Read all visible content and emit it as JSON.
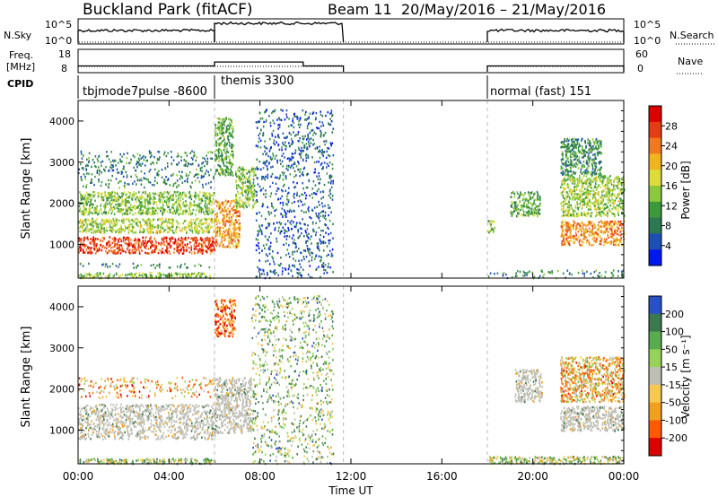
{
  "header": {
    "station": "Buckland Park (fitACF)",
    "beam_label": "Beam 11",
    "date_range": "20/May/2016 – 21/May/2016"
  },
  "nsky_panel": {
    "left_label": "N.Sky",
    "right_label": "N.Search",
    "left_ticks": [
      "10^5",
      "10^0"
    ],
    "right_ticks": [
      "10^5",
      "10^0"
    ]
  },
  "freq_panel": {
    "left_label_line1": "Freq.",
    "left_label_line2": "[MHz]",
    "right_label": "Nave",
    "left_ticks": [
      "18",
      "8"
    ],
    "right_ticks": [
      "60",
      "0"
    ]
  },
  "cpid": {
    "label": "CPID",
    "segments": [
      {
        "name": "tbjmode7pulse -8600",
        "start_hour": 0.0,
        "end_hour": 6.0
      },
      {
        "name": "themis 3300",
        "start_hour": 6.0,
        "end_hour": 11.67
      },
      {
        "name": "normal (fast) 151",
        "start_hour": 18.0,
        "end_hour": 24.0
      }
    ]
  },
  "x_axis": {
    "title": "Time UT",
    "ticks": [
      "00:00",
      "04:00",
      "08:00",
      "12:00",
      "16:00",
      "20:00",
      "00:00"
    ]
  },
  "colors": {
    "power": [
      "#0018f0",
      "#1e50b4",
      "#2d7850",
      "#3c9a3c",
      "#8cc83c",
      "#dcdc3c",
      "#f0b41e",
      "#f0781e",
      "#e63c14",
      "#dc0000"
    ],
    "velocity_neg": [
      "#dc0000",
      "#ff5a00",
      "#f0a01e",
      "#f5c850"
    ],
    "velocity_pos": [
      "#2850c8",
      "#3c7850",
      "#5aaa50",
      "#96d25a"
    ],
    "ground_scatter": "#bebeb4"
  },
  "power_colorbar": {
    "title": "Power [dB]",
    "ticks": [
      "28",
      "24",
      "20",
      "16",
      "12",
      "8",
      "4"
    ]
  },
  "velocity_colorbar": {
    "title": "Velocity [m s⁻¹]",
    "ticks": [
      "200",
      "100",
      "50",
      "15",
      "-15",
      "-50",
      "-100",
      "-200"
    ]
  },
  "chart_data": [
    {
      "type": "line",
      "panel": "N.Sky / N.Search",
      "x_unit": "hour UT",
      "x_range": [
        0,
        24
      ],
      "segments": [
        {
          "start_hour": 0.0,
          "end_hour": 6.0,
          "level": "mid"
        },
        {
          "start_hour": 6.0,
          "end_hour": 11.67,
          "level": "high"
        },
        {
          "start_hour": 18.0,
          "end_hour": 24.0,
          "level": "mid"
        }
      ]
    },
    {
      "type": "line",
      "panel": "Freq. [MHz] / Nave",
      "x_unit": "hour UT",
      "ylim": [
        8,
        18
      ],
      "freq_segments": [
        {
          "start_hour": 0.0,
          "end_hour": 6.0,
          "value": 10.5
        },
        {
          "start_hour": 6.0,
          "end_hour": 9.9,
          "value": 12.5
        },
        {
          "start_hour": 9.9,
          "end_hour": 11.67,
          "value": 10.5
        },
        {
          "start_hour": 18.0,
          "end_hour": 24.0,
          "value": 10.5
        }
      ]
    },
    {
      "type": "heatmap",
      "panel": "Power",
      "ylabel": "Slant Range [km]",
      "xlabel": "Time UT",
      "xlim": [
        0,
        24
      ],
      "ylim": [
        180,
        4500
      ],
      "y_ticks": [
        1000,
        2000,
        3000,
        4000
      ],
      "colorbar_range_db": [
        0,
        32
      ],
      "regions": [
        {
          "t": [
            0.0,
            6.0
          ],
          "r": [
            200,
            330
          ],
          "value": 14
        },
        {
          "t": [
            0.0,
            6.0
          ],
          "r": [
            450,
            560
          ],
          "value": 10
        },
        {
          "t": [
            0.0,
            6.0
          ],
          "r": [
            800,
            1200
          ],
          "value": 27
        },
        {
          "t": [
            0.0,
            6.0
          ],
          "r": [
            1300,
            1650
          ],
          "value": 16
        },
        {
          "t": [
            0.0,
            6.0
          ],
          "r": [
            1750,
            2300
          ],
          "value": 14
        },
        {
          "t": [
            0.0,
            6.0
          ],
          "r": [
            2400,
            3300
          ],
          "value": 9
        },
        {
          "t": [
            6.0,
            7.1
          ],
          "r": [
            950,
            2100
          ],
          "value": 22
        },
        {
          "t": [
            6.0,
            6.8
          ],
          "r": [
            2700,
            4100
          ],
          "value": 12
        },
        {
          "t": [
            6.9,
            7.8
          ],
          "r": [
            1900,
            2900
          ],
          "value": 14
        },
        {
          "t": [
            7.8,
            11.2
          ],
          "r": [
            200,
            4300
          ],
          "value": 6
        },
        {
          "t": [
            18.0,
            24.0
          ],
          "r": [
            200,
            400
          ],
          "value": 9
        },
        {
          "t": [
            18.0,
            18.3
          ],
          "r": [
            1300,
            1600
          ],
          "value": 14
        },
        {
          "t": [
            19.0,
            20.3
          ],
          "r": [
            1700,
            2300
          ],
          "value": 12
        },
        {
          "t": [
            21.2,
            24.0
          ],
          "r": [
            1000,
            1600
          ],
          "value": 23
        },
        {
          "t": [
            21.2,
            24.0
          ],
          "r": [
            1700,
            2700
          ],
          "value": 15
        },
        {
          "t": [
            21.2,
            23.0
          ],
          "r": [
            2700,
            3600
          ],
          "value": 10
        }
      ]
    },
    {
      "type": "heatmap",
      "panel": "Velocity",
      "ylabel": "Slant Range [km]",
      "xlabel": "Time UT",
      "xlim": [
        0,
        24
      ],
      "ylim": [
        180,
        4500
      ],
      "y_ticks": [
        1000,
        2000,
        3000,
        4000
      ],
      "colorbar_range_ms": [
        -250,
        250
      ],
      "regions": [
        {
          "t": [
            0.0,
            6.0
          ],
          "r": [
            800,
            1650
          ],
          "value": 0,
          "ground_scatter": true
        },
        {
          "t": [
            0.0,
            6.0
          ],
          "r": [
            1800,
            2300
          ],
          "value": -80
        },
        {
          "t": [
            0.0,
            6.0
          ],
          "r": [
            200,
            330
          ],
          "value": 40
        },
        {
          "t": [
            6.0,
            7.6
          ],
          "r": [
            950,
            2300
          ],
          "value": 0,
          "ground_scatter": true
        },
        {
          "t": [
            6.0,
            6.9
          ],
          "r": [
            3300,
            4200
          ],
          "value": -150
        },
        {
          "t": [
            7.6,
            11.2
          ],
          "r": [
            200,
            4300
          ],
          "value": 60
        },
        {
          "t": [
            18.0,
            24.0
          ],
          "r": [
            200,
            380
          ],
          "value": 40
        },
        {
          "t": [
            19.2,
            20.4
          ],
          "r": [
            1700,
            2500
          ],
          "value": 0,
          "ground_scatter": true
        },
        {
          "t": [
            21.2,
            24.0
          ],
          "r": [
            1000,
            1600
          ],
          "value": 0,
          "ground_scatter": true
        },
        {
          "t": [
            21.2,
            24.0
          ],
          "r": [
            1700,
            2800
          ],
          "value": -60
        }
      ]
    }
  ]
}
